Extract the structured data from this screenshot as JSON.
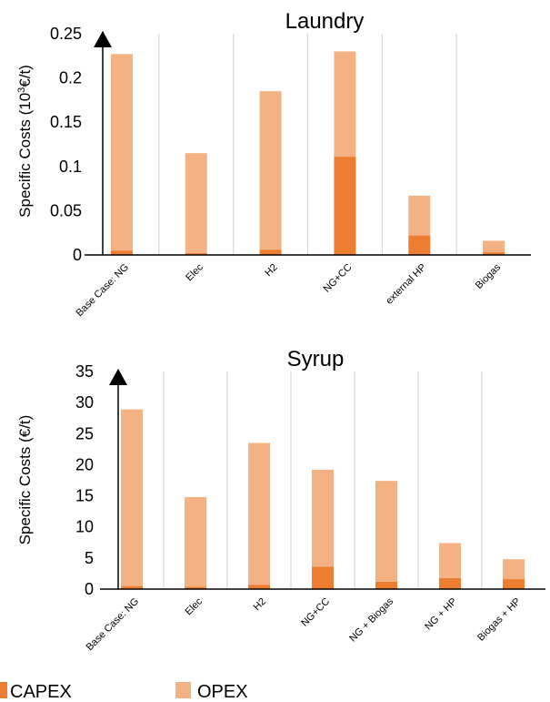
{
  "colors": {
    "capex": "#ED7D31",
    "opex": "#F4B183",
    "grid": "#D9D9D9",
    "axis": "#000000"
  },
  "legend": {
    "capex_label": "CAPEX",
    "opex_label": "OPEX"
  },
  "chart_data": [
    {
      "type": "bar",
      "stacked": true,
      "title": "Laundry",
      "ylabel_pre": "Specific Costs (10",
      "ylabel_sup": "3",
      "ylabel_post": "€/t)",
      "ylim": [
        0,
        0.25
      ],
      "yticks": [
        "0",
        "0.05",
        "0.1",
        "0.15",
        "0.2",
        "0.25"
      ],
      "ytick_values": [
        0,
        0.05,
        0.1,
        0.15,
        0.2,
        0.25
      ],
      "grid": "vertical",
      "categories": [
        "Base Case: NG",
        "Elec",
        "H2",
        "NG+CC",
        "external HP",
        "Biogas"
      ],
      "series": [
        {
          "name": "CAPEX",
          "values": [
            0.005,
            0.002,
            0.006,
            0.111,
            0.022,
            0.003
          ]
        },
        {
          "name": "OPEX",
          "values": [
            0.222,
            0.113,
            0.179,
            0.119,
            0.045,
            0.013
          ]
        }
      ]
    },
    {
      "type": "bar",
      "stacked": true,
      "title": "Syrup",
      "ylabel": "Specific Costs (€/t)",
      "ylim": [
        0,
        35
      ],
      "yticks": [
        "0",
        "5",
        "10",
        "15",
        "20",
        "25",
        "30",
        "35"
      ],
      "ytick_values": [
        0,
        5,
        10,
        15,
        20,
        25,
        30,
        35
      ],
      "grid": "vertical",
      "categories": [
        "Base Case: NG",
        "Elec",
        "H2",
        "NG+CC",
        "NG + Biogas",
        "NG + HP",
        "Biogas + HP"
      ],
      "series": [
        {
          "name": "CAPEX",
          "values": [
            0.5,
            0.4,
            0.7,
            3.6,
            1.2,
            1.8,
            1.6
          ]
        },
        {
          "name": "OPEX",
          "values": [
            28.4,
            14.4,
            22.8,
            15.6,
            16.2,
            5.6,
            3.2
          ]
        }
      ]
    }
  ]
}
